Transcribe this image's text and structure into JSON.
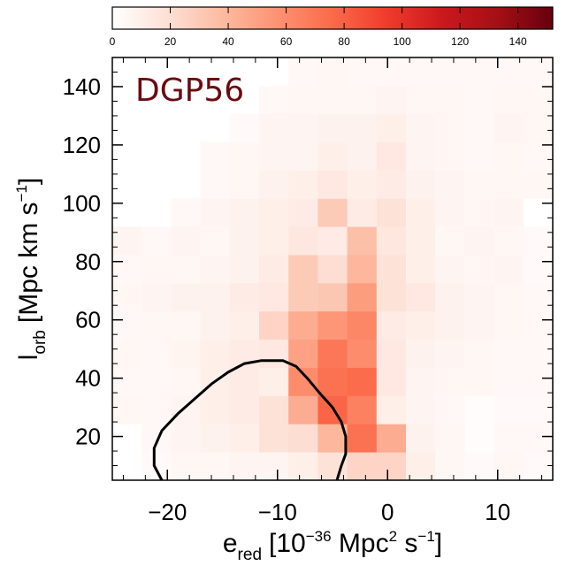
{
  "chart_data": {
    "type": "heatmap",
    "title": "DGP56",
    "title_color": "#6b0a12",
    "xlabel": {
      "main": "e",
      "sub": "red",
      "bracket": "[10",
      "exp": "−36",
      "units_a": " Mpc",
      "units_exp_a": "2",
      "units_b": " s",
      "units_exp_b": "−1",
      "close": "]"
    },
    "ylabel": {
      "main": "l",
      "sub": "orb",
      "bracket": "[Mpc km s",
      "exp": "−1",
      "close": "]"
    },
    "xlim": [
      -25,
      15
    ],
    "ylim": [
      5,
      150
    ],
    "x_ticks": [
      -20,
      -10,
      0,
      10
    ],
    "x_tick_labels": [
      "−20",
      "−10",
      "0",
      "10"
    ],
    "y_ticks": [
      20,
      40,
      60,
      80,
      100,
      120,
      140
    ],
    "y_tick_labels": [
      "20",
      "40",
      "60",
      "80",
      "100",
      "120",
      "140"
    ],
    "bin_width_x": 2.6667,
    "bin_width_y": 9.6667,
    "colorbar": {
      "range": [
        0,
        152
      ],
      "ticks": [
        0,
        20,
        40,
        60,
        80,
        100,
        120,
        140
      ],
      "tick_labels": [
        "0",
        "20",
        "40",
        "60",
        "80",
        "100",
        "120",
        "140"
      ],
      "colors": [
        "#ffffff",
        "#fde0d6",
        "#fcbba1",
        "#fc9272",
        "#fb6a4a",
        "#ef3b2c",
        "#cb181d",
        "#a50f15",
        "#67000d"
      ]
    },
    "counts": [
      [
        0,
        3,
        5,
        5,
        6,
        6,
        10,
        18,
        25,
        25,
        10,
        5,
        3,
        5,
        3
      ],
      [
        0,
        4,
        6,
        8,
        10,
        18,
        20,
        40,
        72,
        45,
        8,
        5,
        2,
        4,
        4
      ],
      [
        5,
        4,
        6,
        10,
        12,
        18,
        45,
        78,
        65,
        10,
        6,
        4,
        2,
        3,
        3
      ],
      [
        4,
        4,
        5,
        10,
        12,
        10,
        60,
        72,
        75,
        14,
        6,
        5,
        5,
        4,
        4
      ],
      [
        5,
        4,
        7,
        10,
        12,
        14,
        50,
        70,
        60,
        14,
        8,
        6,
        5,
        4,
        4
      ],
      [
        4,
        5,
        5,
        8,
        10,
        25,
        45,
        55,
        62,
        12,
        10,
        8,
        6,
        5,
        4
      ],
      [
        5,
        6,
        8,
        8,
        12,
        14,
        30,
        32,
        52,
        18,
        14,
        8,
        6,
        5,
        4
      ],
      [
        4,
        5,
        5,
        6,
        8,
        12,
        30,
        20,
        40,
        18,
        10,
        6,
        5,
        6,
        3
      ],
      [
        6,
        4,
        6,
        5,
        8,
        10,
        15,
        12,
        36,
        15,
        10,
        5,
        6,
        5,
        3
      ],
      [
        0,
        0,
        4,
        6,
        8,
        10,
        12,
        30,
        12,
        18,
        10,
        6,
        5,
        6,
        0
      ],
      [
        0,
        0,
        0,
        4,
        5,
        8,
        10,
        14,
        10,
        12,
        8,
        6,
        5,
        5,
        5
      ],
      [
        0,
        0,
        0,
        4,
        5,
        6,
        6,
        10,
        8,
        14,
        6,
        5,
        4,
        5,
        4
      ],
      [
        0,
        0,
        0,
        0,
        3,
        6,
        6,
        8,
        8,
        10,
        6,
        5,
        4,
        6,
        5
      ],
      [
        0,
        0,
        0,
        0,
        0,
        4,
        5,
        5,
        5,
        6,
        5,
        5,
        4,
        5,
        5
      ],
      [
        0,
        0,
        0,
        0,
        0,
        0,
        4,
        5,
        4,
        4,
        4,
        4,
        4,
        4,
        4
      ]
    ],
    "contour": [
      [
        -20.5,
        5
      ],
      [
        -21.2,
        10
      ],
      [
        -21.2,
        16
      ],
      [
        -20.5,
        22
      ],
      [
        -19.0,
        28
      ],
      [
        -17.5,
        33
      ],
      [
        -16.0,
        38
      ],
      [
        -14.5,
        42
      ],
      [
        -13.0,
        45
      ],
      [
        -11.5,
        46
      ],
      [
        -9.5,
        46
      ],
      [
        -8.3,
        44
      ],
      [
        -7.3,
        40
      ],
      [
        -6.2,
        35
      ],
      [
        -5.0,
        30
      ],
      [
        -4.2,
        25
      ],
      [
        -3.8,
        20
      ],
      [
        -3.8,
        14
      ],
      [
        -4.2,
        10
      ],
      [
        -4.6,
        5
      ]
    ]
  }
}
